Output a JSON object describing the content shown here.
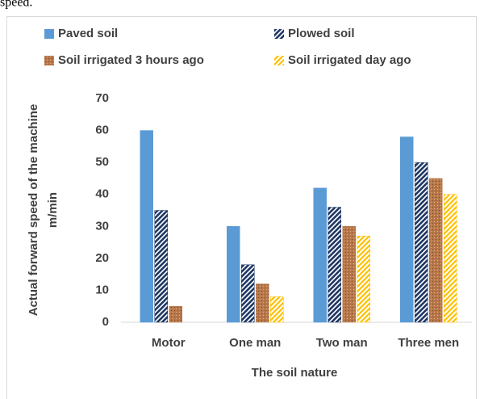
{
  "caption": "speed.",
  "chart_data": {
    "type": "bar",
    "categories": [
      "Motor",
      "One man",
      "Two man",
      "Three men"
    ],
    "series": [
      {
        "name": "Paved soil",
        "color": "#5b9bd5",
        "values": [
          60,
          30,
          42,
          58
        ]
      },
      {
        "name": "Plowed soil",
        "color": "#203864",
        "values": [
          35,
          18,
          36,
          50
        ]
      },
      {
        "name": "Soil irrigated 3 hours ago",
        "color": "#b8784a",
        "values": [
          5,
          12,
          30,
          45
        ]
      },
      {
        "name": "Soil irrigated day ago",
        "color": "#ffc000",
        "values": [
          0,
          8,
          27,
          40
        ]
      }
    ],
    "ylim": [
      0,
      70
    ],
    "yticks": [
      0,
      10,
      20,
      30,
      40,
      50,
      60,
      70
    ],
    "ylabel": [
      "Actual forward speed of the machine",
      "m/min"
    ],
    "xlabel": "The soil nature",
    "grid": false,
    "legend": "top"
  }
}
